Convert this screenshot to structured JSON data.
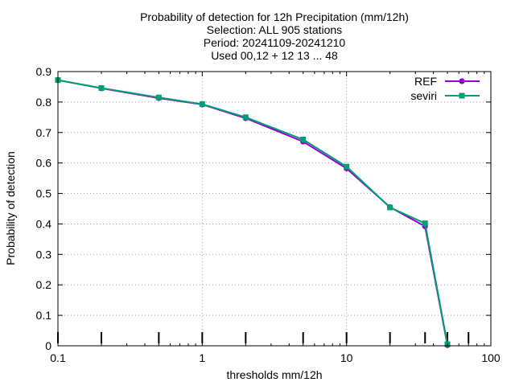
{
  "chart_data": {
    "type": "line",
    "title_lines": [
      "Probability of detection  for 12h Precipitation (mm/12h)",
      "Selection: ALL    905 stations",
      "Period: 20241109-20241210",
      "Used 00,12 + 12 13 ... 48"
    ],
    "xlabel": "thresholds mm/12h",
    "ylabel": "Probability of detection",
    "xscale": "log",
    "xlim": [
      0.1,
      100
    ],
    "ylim": [
      0,
      0.9
    ],
    "x_ticks": [
      0.1,
      1,
      10,
      100
    ],
    "x_tick_labels": [
      "0.1",
      "1",
      "10",
      "100"
    ],
    "y_ticks": [
      0,
      0.1,
      0.2,
      0.3,
      0.4,
      0.5,
      0.6,
      0.7,
      0.8,
      0.9
    ],
    "y_tick_labels": [
      "0",
      "0.1",
      "0.2",
      "0.3",
      "0.4",
      "0.5",
      "0.6",
      "0.7",
      "0.8",
      "0.9"
    ],
    "grid": true,
    "legend_position": "top-right",
    "x": [
      0.1,
      0.2,
      0.5,
      1,
      2,
      5,
      10,
      20,
      35,
      50
    ],
    "series": [
      {
        "name": "REF",
        "color": "#9400d3",
        "marker": "circle",
        "values": [
          0.872,
          0.845,
          0.813,
          0.792,
          0.747,
          0.67,
          0.582,
          0.455,
          0.392,
          0.002
        ]
      },
      {
        "name": "seviri",
        "color": "#009e73",
        "marker": "square",
        "values": [
          0.872,
          0.846,
          0.815,
          0.793,
          0.75,
          0.677,
          0.588,
          0.454,
          0.402,
          0.005
        ]
      }
    ],
    "threshold_markers": [
      0.1,
      0.2,
      0.5,
      1,
      2,
      5,
      10,
      20,
      35,
      50,
      70
    ]
  }
}
